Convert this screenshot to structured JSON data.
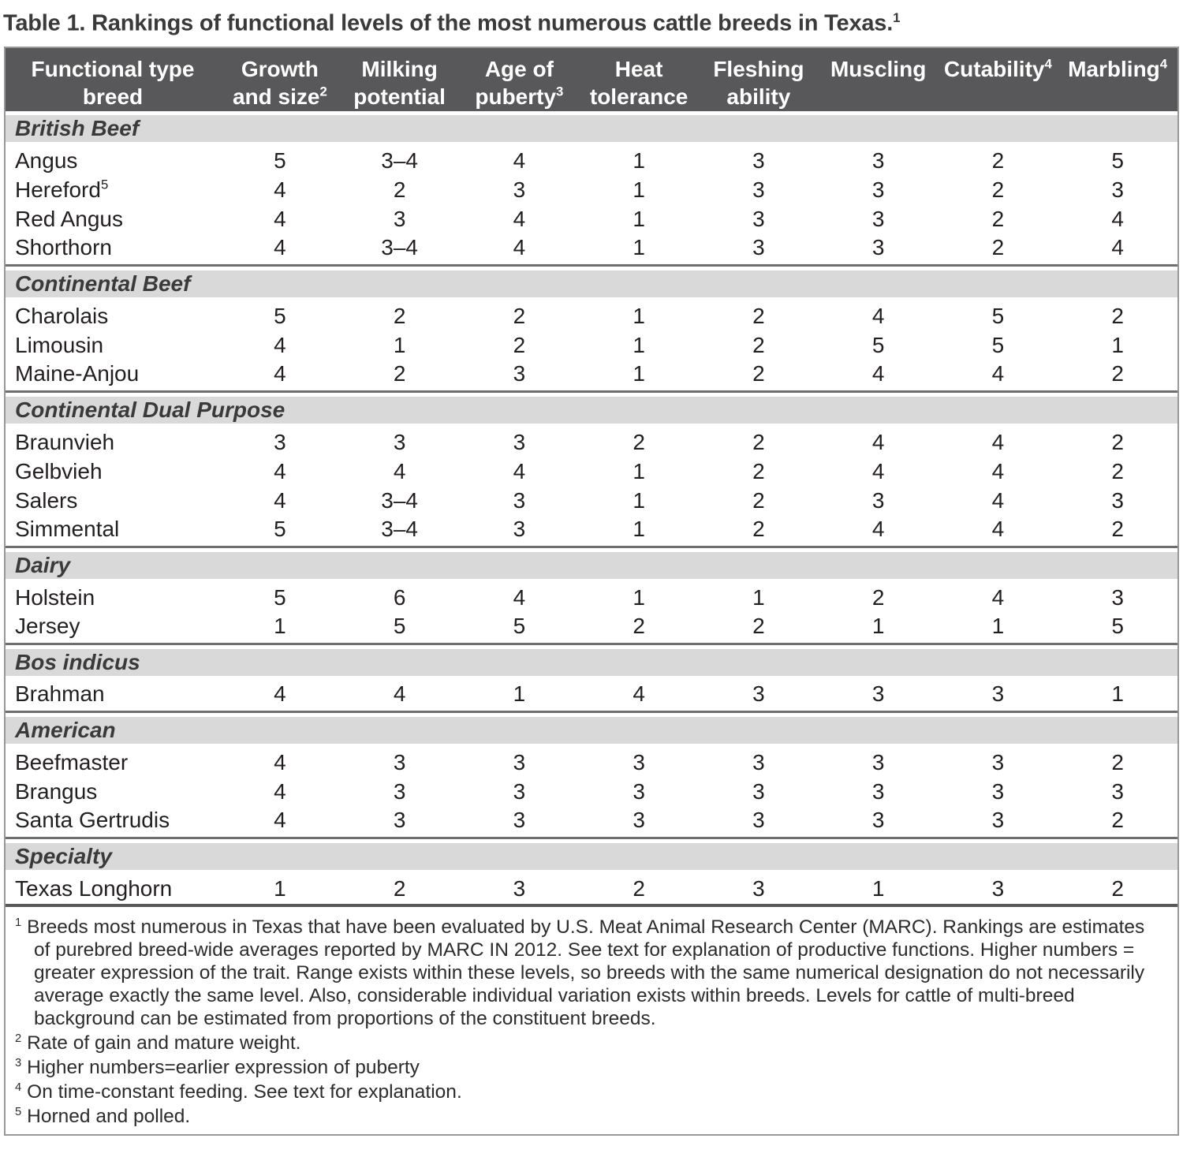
{
  "colors": {
    "header_bg": "#58585a",
    "header_text": "#ffffff",
    "section_band_bg": "#d9d9d9",
    "body_text": "#231f20",
    "separator_line": "#6e6e70",
    "outer_border": "#98989a"
  },
  "title": {
    "text": "Table 1. Rankings of functional levels of the most numerous cattle breeds in Texas.",
    "sup": "1"
  },
  "table": {
    "columns": [
      {
        "l1": "Functional type",
        "sup1": "",
        "l2": "breed",
        "sup2": ""
      },
      {
        "l1": "Growth",
        "sup1": "",
        "l2": "and size",
        "sup2": "2"
      },
      {
        "l1": "Milking",
        "sup1": "",
        "l2": "potential",
        "sup2": ""
      },
      {
        "l1": "Age of",
        "sup1": "",
        "l2": "puberty",
        "sup2": "3"
      },
      {
        "l1": "Heat",
        "sup1": "",
        "l2": "tolerance",
        "sup2": ""
      },
      {
        "l1": "Fleshing",
        "sup1": "",
        "l2": "ability",
        "sup2": ""
      },
      {
        "l1": "Muscling",
        "sup1": "",
        "l2": "",
        "sup2": ""
      },
      {
        "l1": "Cutability",
        "sup1": "4",
        "l2": "",
        "sup2": ""
      },
      {
        "l1": "Marbling",
        "sup1": "4",
        "l2": "",
        "sup2": ""
      }
    ],
    "sections": [
      {
        "name": "British Beef",
        "rows": [
          {
            "name": "Angus",
            "sup": "",
            "values": [
              "5",
              "3–4",
              "4",
              "1",
              "3",
              "3",
              "2",
              "5"
            ]
          },
          {
            "name": "Hereford",
            "sup": "5",
            "values": [
              "4",
              "2",
              "3",
              "1",
              "3",
              "3",
              "2",
              "3"
            ]
          },
          {
            "name": "Red Angus",
            "sup": "",
            "values": [
              "4",
              "3",
              "4",
              "1",
              "3",
              "3",
              "2",
              "4"
            ]
          },
          {
            "name": "Shorthorn",
            "sup": "",
            "values": [
              "4",
              "3–4",
              "4",
              "1",
              "3",
              "3",
              "2",
              "4"
            ]
          }
        ]
      },
      {
        "name": "Continental Beef",
        "rows": [
          {
            "name": "Charolais",
            "sup": "",
            "values": [
              "5",
              "2",
              "2",
              "1",
              "2",
              "4",
              "5",
              "2"
            ]
          },
          {
            "name": "Limousin",
            "sup": "",
            "values": [
              "4",
              "1",
              "2",
              "1",
              "2",
              "5",
              "5",
              "1"
            ]
          },
          {
            "name": "Maine-Anjou",
            "sup": "",
            "values": [
              "4",
              "2",
              "3",
              "1",
              "2",
              "4",
              "4",
              "2"
            ]
          }
        ]
      },
      {
        "name": "Continental Dual Purpose",
        "rows": [
          {
            "name": "Braunvieh",
            "sup": "",
            "values": [
              "3",
              "3",
              "3",
              "2",
              "2",
              "4",
              "4",
              "2"
            ]
          },
          {
            "name": "Gelbvieh",
            "sup": "",
            "values": [
              "4",
              "4",
              "4",
              "1",
              "2",
              "4",
              "4",
              "2"
            ]
          },
          {
            "name": "Salers",
            "sup": "",
            "values": [
              "4",
              "3–4",
              "3",
              "1",
              "2",
              "3",
              "4",
              "3"
            ]
          },
          {
            "name": "Simmental",
            "sup": "",
            "values": [
              "5",
              "3–4",
              "3",
              "1",
              "2",
              "4",
              "4",
              "2"
            ]
          }
        ]
      },
      {
        "name": "Dairy",
        "rows": [
          {
            "name": "Holstein",
            "sup": "",
            "values": [
              "5",
              "6",
              "4",
              "1",
              "1",
              "2",
              "4",
              "3"
            ]
          },
          {
            "name": "Jersey",
            "sup": "",
            "values": [
              "1",
              "5",
              "5",
              "2",
              "2",
              "1",
              "1",
              "5"
            ]
          }
        ]
      },
      {
        "name": "Bos indicus",
        "rows": [
          {
            "name": "Brahman",
            "sup": "",
            "values": [
              "4",
              "4",
              "1",
              "4",
              "3",
              "3",
              "3",
              "1"
            ]
          }
        ]
      },
      {
        "name": "American",
        "rows": [
          {
            "name": "Beefmaster",
            "sup": "",
            "values": [
              "4",
              "3",
              "3",
              "3",
              "3",
              "3",
              "3",
              "2"
            ]
          },
          {
            "name": "Brangus",
            "sup": "",
            "values": [
              "4",
              "3",
              "3",
              "3",
              "3",
              "3",
              "3",
              "3"
            ]
          },
          {
            "name": "Santa Gertrudis",
            "sup": "",
            "values": [
              "4",
              "3",
              "3",
              "3",
              "3",
              "3",
              "3",
              "2"
            ]
          }
        ]
      },
      {
        "name": "Specialty",
        "rows": [
          {
            "name": "Texas Longhorn",
            "sup": "",
            "values": [
              "1",
              "2",
              "3",
              "2",
              "3",
              "1",
              "3",
              "2"
            ]
          }
        ]
      }
    ]
  },
  "footnotes": [
    {
      "sup": "1",
      "text": "Breeds most numerous in Texas that have been evaluated by U.S. Meat Animal Research Center (MARC). Rankings are estimates of purebred breed-wide averages reported by MARC IN 2012. See text for explanation of productive functions. Higher numbers = greater expression of the trait. Range exists within these levels, so breeds with the same numerical designation do not necessarily average exactly the same level. Also, considerable individual variation exists within breeds. Levels for cattle of multi-breed background can be estimated from proportions of the constituent breeds."
    },
    {
      "sup": "2",
      "text": "Rate of gain and mature weight."
    },
    {
      "sup": "3",
      "text": "Higher numbers=earlier expression of puberty"
    },
    {
      "sup": "4",
      "text": "On time-constant feeding. See text for explanation."
    },
    {
      "sup": "5",
      "text": "Horned and polled."
    }
  ]
}
